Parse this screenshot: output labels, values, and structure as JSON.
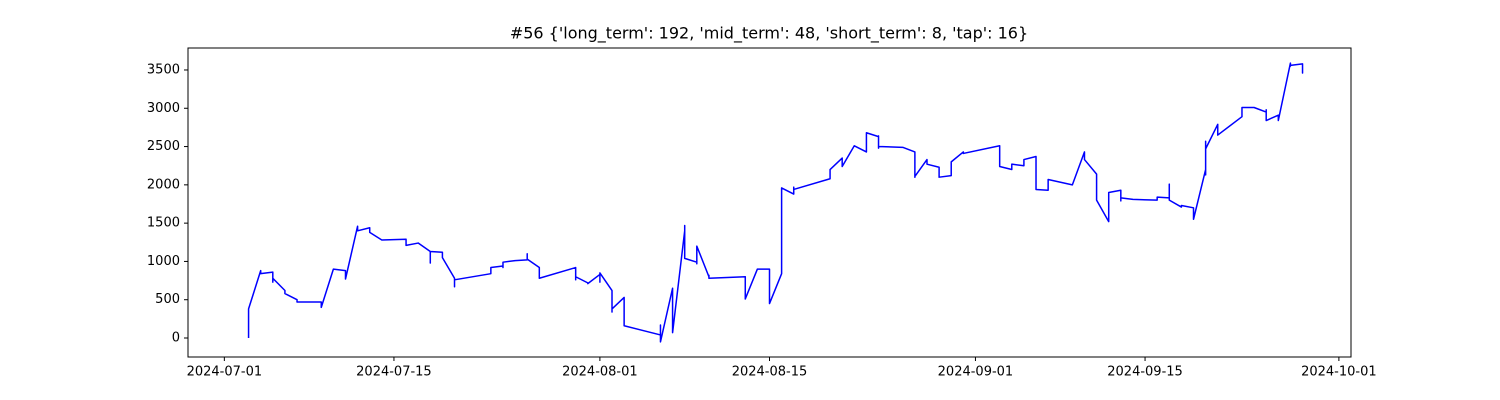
{
  "chart_data": {
    "type": "line",
    "title": "#56 {'long_term': 192, 'mid_term': 48, 'short_term': 8, 'tap': 16}",
    "color": "#0000ff",
    "x": [
      "2024-07-03",
      "2024-07-03",
      "2024-07-03",
      "2024-07-04",
      "2024-07-04",
      "2024-07-05",
      "2024-07-05",
      "2024-07-05",
      "2024-07-06",
      "2024-07-06",
      "2024-07-07",
      "2024-07-07",
      "2024-07-09",
      "2024-07-09",
      "2024-07-10",
      "2024-07-11",
      "2024-07-11",
      "2024-07-12",
      "2024-07-12",
      "2024-07-13",
      "2024-07-13",
      "2024-07-13",
      "2024-07-14",
      "2024-07-16",
      "2024-07-16",
      "2024-07-16",
      "2024-07-17",
      "2024-07-18",
      "2024-07-18",
      "2024-07-18",
      "2024-07-19",
      "2024-07-19",
      "2024-07-20",
      "2024-07-20",
      "2024-07-20",
      "2024-07-23",
      "2024-07-23",
      "2024-07-24",
      "2024-07-24",
      "2024-07-24",
      "2024-07-25",
      "2024-07-26",
      "2024-07-26",
      "2024-07-26",
      "2024-07-27",
      "2024-07-27",
      "2024-07-27",
      "2024-07-30",
      "2024-07-30",
      "2024-07-30",
      "2024-07-31",
      "2024-07-31",
      "2024-08-01",
      "2024-08-01",
      "2024-08-01",
      "2024-08-01",
      "2024-08-02",
      "2024-08-02",
      "2024-08-02",
      "2024-08-02",
      "2024-08-02",
      "2024-08-02",
      "2024-08-03",
      "2024-08-03",
      "2024-08-03",
      "2024-08-03",
      "2024-08-03",
      "2024-08-06",
      "2024-08-06",
      "2024-08-06",
      "2024-08-06",
      "2024-08-07",
      "2024-08-07",
      "2024-08-07",
      "2024-08-07",
      "2024-08-08",
      "2024-08-08",
      "2024-08-08",
      "2024-08-09",
      "2024-08-09",
      "2024-08-09",
      "2024-08-10",
      "2024-08-10",
      "2024-08-10",
      "2024-08-13",
      "2024-08-13",
      "2024-08-13",
      "2024-08-13",
      "2024-08-14",
      "2024-08-15",
      "2024-08-15",
      "2024-08-15",
      "2024-08-15",
      "2024-08-16",
      "2024-08-16",
      "2024-08-16",
      "2024-08-16",
      "2024-08-17",
      "2024-08-17",
      "2024-08-17",
      "2024-08-20",
      "2024-08-20",
      "2024-08-21",
      "2024-08-21",
      "2024-08-21",
      "2024-08-22",
      "2024-08-23",
      "2024-08-23",
      "2024-08-24",
      "2024-08-24",
      "2024-08-24",
      "2024-08-24",
      "2024-08-26",
      "2024-08-27",
      "2024-08-27",
      "2024-08-27",
      "2024-08-28",
      "2024-08-28",
      "2024-08-29",
      "2024-08-29",
      "2024-08-30",
      "2024-08-30",
      "2024-08-31",
      "2024-08-31",
      "2024-09-03",
      "2024-09-03",
      "2024-09-03",
      "2024-09-03",
      "2024-09-04",
      "2024-09-04",
      "2024-09-05",
      "2024-09-05",
      "2024-09-06",
      "2024-09-06",
      "2024-09-06",
      "2024-09-07",
      "2024-09-07",
      "2024-09-09",
      "2024-09-10",
      "2024-09-10",
      "2024-09-11",
      "2024-09-11",
      "2024-09-11",
      "2024-09-11",
      "2024-09-12",
      "2024-09-12",
      "2024-09-13",
      "2024-09-13",
      "2024-09-13",
      "2024-09-13",
      "2024-09-14",
      "2024-09-16",
      "2024-09-16",
      "2024-09-17",
      "2024-09-17",
      "2024-09-17",
      "2024-09-18",
      "2024-09-18",
      "2024-09-19",
      "2024-09-19",
      "2024-09-20",
      "2024-09-20",
      "2024-09-20",
      "2024-09-20",
      "2024-09-20",
      "2024-09-21",
      "2024-09-21",
      "2024-09-23",
      "2024-09-23",
      "2024-09-24",
      "2024-09-25",
      "2024-09-25",
      "2024-09-25",
      "2024-09-25",
      "2024-09-26",
      "2024-09-26",
      "2024-09-27",
      "2024-09-27",
      "2024-09-27",
      "2024-09-28",
      "2024-09-28",
      "2024-09-28"
    ],
    "values": [
      0,
      200,
      380,
      880,
      840,
      860,
      730,
      780,
      620,
      580,
      500,
      470,
      470,
      400,
      900,
      880,
      770,
      1460,
      1400,
      1440,
      1390,
      1380,
      1280,
      1290,
      1260,
      1210,
      1240,
      1130,
      980,
      1130,
      1120,
      1050,
      780,
      670,
      760,
      840,
      920,
      940,
      920,
      990,
      1010,
      1020,
      1100,
      1030,
      920,
      830,
      780,
      920,
      760,
      800,
      720,
      710,
      830,
      790,
      730,
      850,
      620,
      400,
      340,
      440,
      420,
      380,
      530,
      460,
      450,
      250,
      160,
      40,
      130,
      170,
      -50,
      650,
      200,
      370,
      70,
      1400,
      1470,
      1040,
      990,
      970,
      1200,
      800,
      820,
      780,
      800,
      700,
      650,
      510,
      900,
      900,
      500,
      480,
      450,
      840,
      1080,
      1050,
      1960,
      1880,
      1970,
      1940,
      2080,
      2200,
      2350,
      2260,
      2240,
      2510,
      2430,
      2680,
      2630,
      2640,
      2480,
      2500,
      2490,
      2430,
      2100,
      2110,
      2330,
      2270,
      2230,
      2100,
      2120,
      2300,
      2430,
      2410,
      2510,
      2490,
      2490,
      2240,
      2200,
      2270,
      2250,
      2330,
      2370,
      2340,
      1940,
      1930,
      2070,
      2000,
      2430,
      2330,
      2140,
      1910,
      1890,
      1800,
      1520,
      1900,
      1930,
      1880,
      1790,
      1830,
      1810,
      1800,
      1840,
      1830,
      2010,
      1800,
      1710,
      1730,
      1700,
      1550,
      2200,
      2130,
      2570,
      2470,
      2470,
      2790,
      2650,
      2890,
      3010,
      3010,
      2950,
      2980,
      2960,
      2840,
      2910,
      2840,
      3590,
      3550,
      3560,
      3580,
      3460,
      3510
    ],
    "xlim": [
      "2024-06-28",
      "2024-10-02"
    ],
    "xticks": [
      "2024-07-01",
      "2024-07-15",
      "2024-08-01",
      "2024-08-15",
      "2024-09-01",
      "2024-09-15",
      "2024-10-01"
    ],
    "ylim": [
      -248,
      3787
    ],
    "yticks": [
      0,
      500,
      1000,
      1500,
      2000,
      2500,
      3000,
      3500
    ]
  }
}
